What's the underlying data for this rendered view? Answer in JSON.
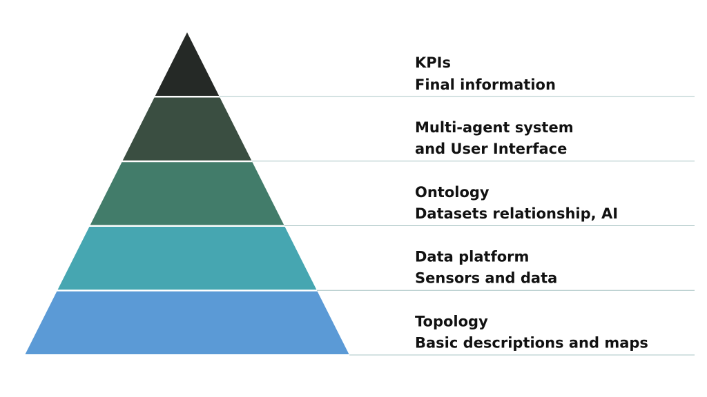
{
  "levels": [
    {
      "title": "KPIs",
      "subtitle": "Final information"
    },
    {
      "title": "Multi-agent system",
      "subtitle": "and User Interface"
    },
    {
      "title": "Ontology",
      "subtitle": "Datasets relationship, AI"
    },
    {
      "title": "Data platform",
      "subtitle": "Sensors and data"
    },
    {
      "title": "Topology",
      "subtitle": "Basic descriptions and maps"
    }
  ]
}
